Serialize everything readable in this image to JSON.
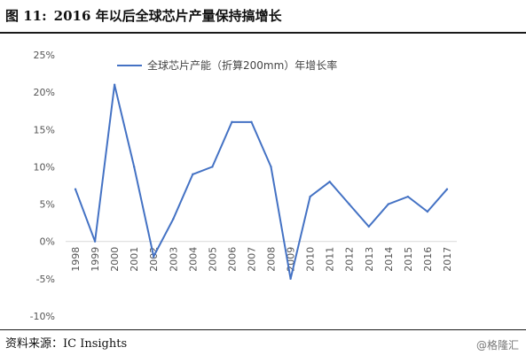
{
  "figure": {
    "label": "图 11:",
    "title": "2016 年以后全球芯片产量保持搞增长",
    "source": "资料来源：IC Insights",
    "watermark": "@格隆汇"
  },
  "colors": {
    "line": "#4472C4",
    "axis": "#d9d9d9",
    "text": "#555555"
  },
  "chart_data": {
    "type": "line",
    "title": "",
    "xlabel": "",
    "ylabel": "",
    "x": [
      "1998",
      "1999",
      "2000",
      "2001",
      "2002",
      "2003",
      "2004",
      "2005",
      "2006",
      "2007",
      "2008",
      "2009",
      "2010",
      "2011",
      "2012",
      "2013",
      "2014",
      "2015",
      "2016",
      "2017"
    ],
    "series": [
      {
        "name": "全球芯片产能（折算200mm）年增长率",
        "values": [
          7,
          0,
          21,
          10,
          -2,
          3,
          9,
          10,
          16,
          16,
          10,
          -5,
          6,
          8,
          5,
          2,
          5,
          6,
          4,
          7
        ]
      }
    ],
    "y_ticks": [
      "25%",
      "20%",
      "15%",
      "10%",
      "5%",
      "0%",
      "-5%",
      "-10%"
    ],
    "ylim": [
      -10,
      25
    ],
    "grid": false,
    "legend_position": "top"
  }
}
